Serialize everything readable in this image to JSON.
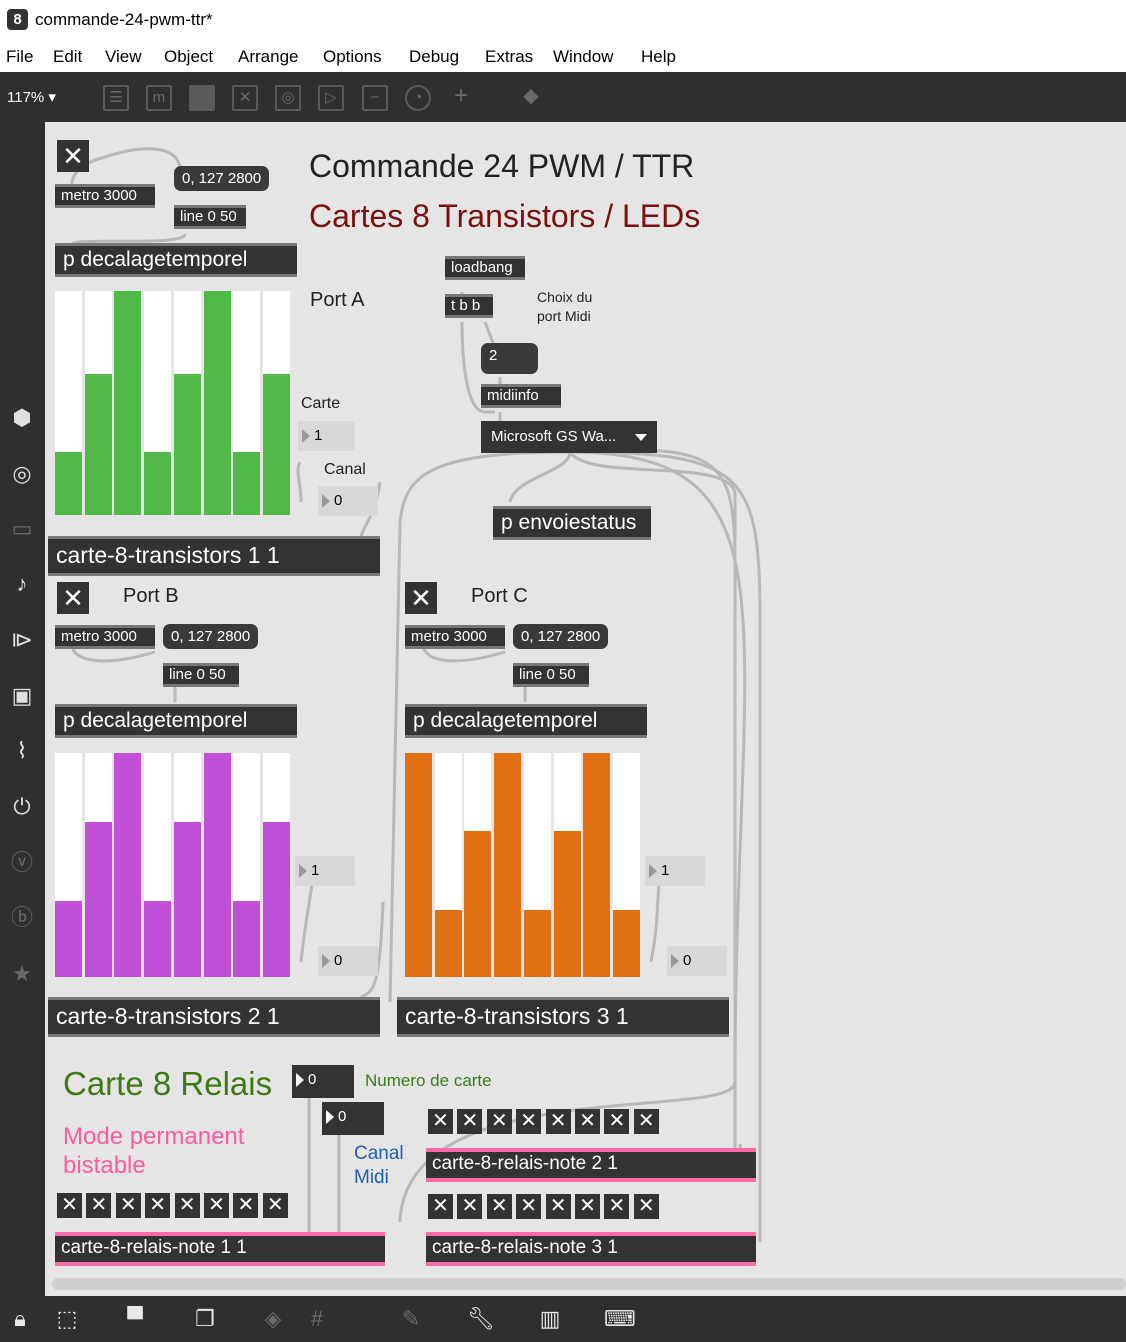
{
  "window": {
    "title": "commande-24-pwm-ttr*"
  },
  "menu": [
    "File",
    "Edit",
    "View",
    "Object",
    "Arrange",
    "Options",
    "Debug",
    "Extras",
    "Window",
    "Help"
  ],
  "toolbar": {
    "zoom": "117% ▾"
  },
  "patch": {
    "title1": "Commande 24 PWM / TTR",
    "title2": "Cartes 8 Transistors / LEDs",
    "portA": "Port A",
    "portB": "Port B",
    "portC": "Port C",
    "metro": "metro 3000",
    "msg": "0, 127 2800",
    "line": "line 0 50",
    "decal": "p decalagetemporel",
    "loadbang": "loadbang",
    "tbb": "t b b",
    "choix": "Choix du\nport Midi",
    "midinum": "2",
    "midiinfo": "midiinfo",
    "midimenu": "Microsoft GS Wa...",
    "envoie": "p envoiestatus",
    "carteLbl": "Carte",
    "canalLbl": "Canal",
    "numA1": "1",
    "numA2": "0",
    "numB1": "1",
    "numB2": "0",
    "numC1": "1",
    "numC2": "0",
    "ct1": "carte-8-transistors 1 1",
    "ct2": "carte-8-transistors 2 1",
    "ct3": "carte-8-transistors 3 1",
    "relaisTitle": "Carte 8 Relais",
    "numCarte": "0",
    "numCarteLbl": "Numero de carte",
    "numCanal": "0",
    "canalMidi": "Canal\nMidi",
    "mode": "Mode permanent\nbistable",
    "rel1": "carte-8-relais-note 1 1",
    "rel2": "carte-8-relais-note 2 1",
    "rel3": "carte-8-relais-note 3 1",
    "toggleGlyph": "✕"
  },
  "sliders": {
    "A": {
      "color": "#52b848",
      "values": [
        0.28,
        0.63,
        1.0,
        0.28,
        0.63,
        1.0,
        0.28,
        0.63
      ]
    },
    "B": {
      "color": "#c150d9",
      "values": [
        0.34,
        0.69,
        1.0,
        0.34,
        0.69,
        1.0,
        0.34,
        0.69
      ]
    },
    "C": {
      "color": "#e07012",
      "values": [
        1.0,
        0.3,
        0.65,
        1.0,
        0.3,
        0.65,
        1.0,
        0.3
      ]
    }
  },
  "colors": {
    "title2": "#7a1010",
    "relais": "#3d7a14",
    "mode": "#ff5aa0",
    "canal": "#2060b0"
  }
}
